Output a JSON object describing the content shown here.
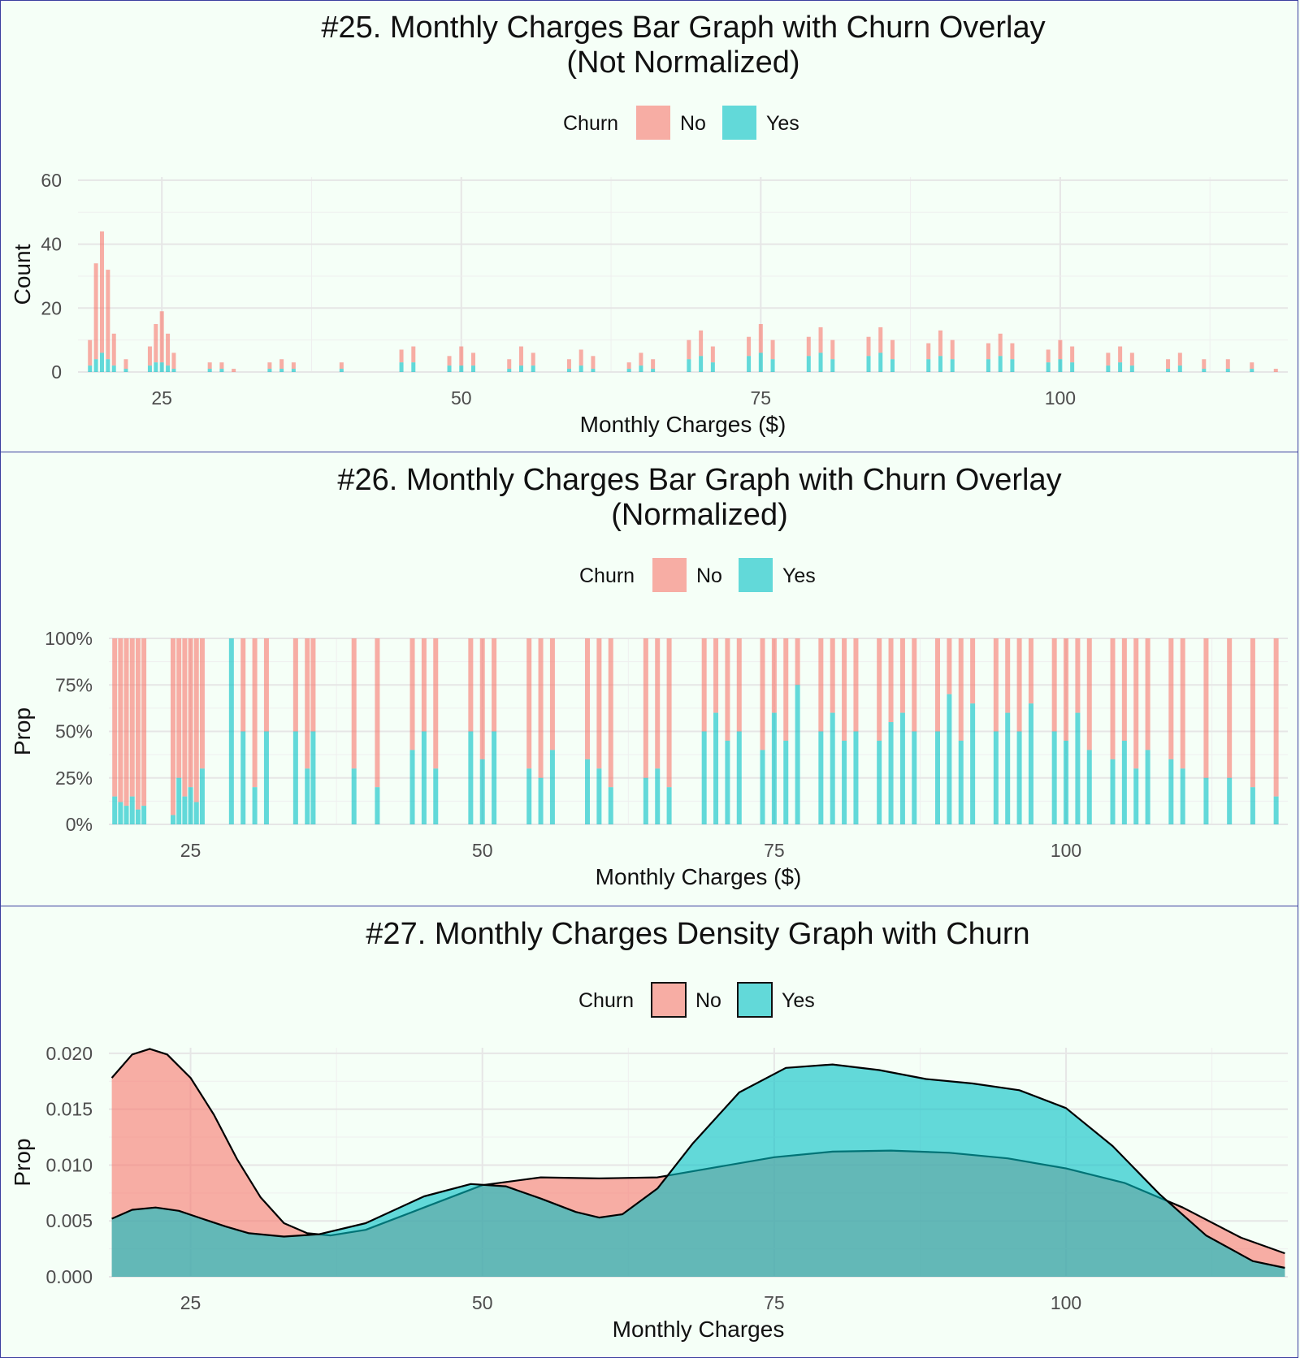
{
  "chart_data": [
    {
      "type": "bar",
      "title": "#25. Monthly Charges Bar Graph with Churn Overlay\n(Not Normalized)",
      "xlabel": "Monthly Charges ($)",
      "ylabel": "Count",
      "xlim": [
        18,
        119
      ],
      "ylim": [
        0,
        61
      ],
      "xticks": [
        25,
        50,
        75,
        100
      ],
      "yticks": [
        0,
        20,
        40,
        60
      ],
      "ytick_labels": [
        "0",
        "20",
        "40",
        "60"
      ],
      "legend": {
        "title": "Churn",
        "position": "top",
        "items": [
          {
            "label": "No",
            "color": "#f8766d"
          },
          {
            "label": "Yes",
            "color": "#00bfc4"
          }
        ]
      },
      "grid": true,
      "stacked": true,
      "series": [
        {
          "name": "No",
          "color": "#f8766d",
          "x": [
            19,
            19.5,
            20,
            20.5,
            21,
            22,
            24,
            24.5,
            25,
            25.5,
            26,
            29,
            30,
            31,
            34,
            35,
            36,
            40,
            45,
            46,
            49,
            50,
            51,
            54,
            55,
            56,
            59,
            60,
            61,
            64,
            65,
            66,
            69,
            70,
            71,
            74,
            75,
            76,
            79,
            80,
            81,
            84,
            85,
            86,
            89,
            90,
            91,
            94,
            95,
            96,
            99,
            100,
            101,
            104,
            105,
            106,
            109,
            110,
            112,
            114,
            116,
            118
          ],
          "values": [
            8,
            30,
            38,
            28,
            10,
            3,
            6,
            12,
            16,
            10,
            5,
            2,
            2,
            1,
            2,
            3,
            2,
            2,
            4,
            5,
            3,
            6,
            4,
            3,
            6,
            4,
            3,
            5,
            4,
            2,
            4,
            3,
            6,
            8,
            5,
            6,
            9,
            6,
            6,
            8,
            6,
            6,
            8,
            6,
            5,
            8,
            6,
            5,
            7,
            5,
            4,
            6,
            5,
            4,
            5,
            4,
            3,
            4,
            3,
            3,
            2,
            1
          ]
        },
        {
          "name": "Yes",
          "color": "#00bfc4",
          "x": [
            19,
            19.5,
            20,
            20.5,
            21,
            22,
            24,
            24.5,
            25,
            25.5,
            26,
            29,
            30,
            31,
            34,
            35,
            36,
            40,
            45,
            46,
            49,
            50,
            51,
            54,
            55,
            56,
            59,
            60,
            61,
            64,
            65,
            66,
            69,
            70,
            71,
            74,
            75,
            76,
            79,
            80,
            81,
            84,
            85,
            86,
            89,
            90,
            91,
            94,
            95,
            96,
            99,
            100,
            101,
            104,
            105,
            106,
            109,
            110,
            112,
            114,
            116,
            118
          ],
          "values": [
            2,
            4,
            6,
            4,
            2,
            1,
            2,
            3,
            3,
            2,
            1,
            1,
            1,
            0,
            1,
            1,
            1,
            1,
            3,
            3,
            2,
            2,
            2,
            1,
            2,
            2,
            1,
            2,
            1,
            1,
            2,
            1,
            4,
            5,
            3,
            5,
            6,
            4,
            5,
            6,
            4,
            5,
            6,
            4,
            4,
            5,
            4,
            4,
            5,
            4,
            3,
            4,
            3,
            2,
            3,
            2,
            1,
            2,
            1,
            1,
            1,
            0
          ]
        }
      ]
    },
    {
      "type": "bar",
      "title": "#26. Monthly Charges Bar Graph with Churn Overlay\n(Normalized)",
      "xlabel": "Monthly Charges ($)",
      "ylabel": "Prop",
      "xlim": [
        18,
        119
      ],
      "ylim": [
        0,
        1
      ],
      "xticks": [
        25,
        50,
        75,
        100
      ],
      "yticks": [
        0,
        0.25,
        0.5,
        0.75,
        1
      ],
      "ytick_labels": [
        "0%",
        "25%",
        "50%",
        "75%",
        "100%"
      ],
      "legend": {
        "title": "Churn",
        "position": "top",
        "items": [
          {
            "label": "No",
            "color": "#f8766d"
          },
          {
            "label": "Yes",
            "color": "#00bfc4"
          }
        ]
      },
      "grid": true,
      "stacked": true,
      "normalized": true,
      "series": [
        {
          "name": "Yes",
          "color": "#00bfc4",
          "x": [
            18.5,
            19,
            19.5,
            20,
            20.5,
            21,
            23.5,
            24,
            24.5,
            25,
            25.5,
            26,
            28.5,
            29.5,
            30.5,
            31.5,
            34,
            35,
            35.5,
            39,
            41,
            44,
            45,
            46,
            49,
            50,
            51,
            54,
            55,
            56,
            59,
            60,
            61,
            64,
            65,
            66,
            69,
            70,
            71,
            72,
            74,
            75,
            76,
            77,
            79,
            80,
            81,
            82,
            84,
            85,
            86,
            87,
            89,
            90,
            91,
            92,
            94,
            95,
            96,
            97,
            99,
            100,
            101,
            102,
            104,
            105,
            106,
            107,
            109,
            110,
            112,
            114,
            116,
            118
          ],
          "values": [
            0.15,
            0.12,
            0.1,
            0.15,
            0.08,
            0.1,
            0.05,
            0.25,
            0.15,
            0.2,
            0.12,
            0.3,
            1,
            0.5,
            0.2,
            0.5,
            0.5,
            0.3,
            0.5,
            0.3,
            0.2,
            0.4,
            0.5,
            0.3,
            0.5,
            0.35,
            0.5,
            0.3,
            0.25,
            0.4,
            0.35,
            0.3,
            0.2,
            0.25,
            0.3,
            0.2,
            0.5,
            0.6,
            0.45,
            0.5,
            0.4,
            0.6,
            0.45,
            0.75,
            0.5,
            0.6,
            0.45,
            0.5,
            0.45,
            0.55,
            0.6,
            0.5,
            0.5,
            0.7,
            0.45,
            0.65,
            0.5,
            0.6,
            0.5,
            0.65,
            0.5,
            0.45,
            0.6,
            0.4,
            0.35,
            0.45,
            0.3,
            0.4,
            0.35,
            0.3,
            0.25,
            0.25,
            0.2,
            0.15
          ]
        }
      ]
    },
    {
      "type": "area",
      "title": "#27. Monthly Charges Density Graph with Churn",
      "xlabel": "Monthly Charges",
      "ylabel": "Prop",
      "xlim": [
        18,
        119
      ],
      "ylim": [
        0,
        0.0205
      ],
      "xticks": [
        25,
        50,
        75,
        100
      ],
      "yticks": [
        0,
        0.005,
        0.01,
        0.015,
        0.02
      ],
      "ytick_labels": [
        "0.000",
        "0.005",
        "0.010",
        "0.015",
        "0.020"
      ],
      "legend": {
        "title": "Churn",
        "position": "top",
        "items": [
          {
            "label": "No",
            "color": "#f8766d"
          },
          {
            "label": "Yes",
            "color": "#00bfc4"
          }
        ]
      },
      "grid": true,
      "series": [
        {
          "name": "No",
          "color": "#f8766d",
          "x": [
            18.25,
            20,
            21.5,
            23,
            25,
            27,
            29,
            31,
            33,
            35,
            37,
            40,
            45,
            50,
            55,
            60,
            65,
            70,
            75,
            80,
            85,
            90,
            95,
            100,
            105,
            110,
            115,
            118.75
          ],
          "y": [
            0.0178,
            0.0199,
            0.0204,
            0.0199,
            0.0178,
            0.0145,
            0.0105,
            0.0071,
            0.0048,
            0.0039,
            0.0037,
            0.0042,
            0.0062,
            0.0082,
            0.0089,
            0.0088,
            0.0089,
            0.0098,
            0.0107,
            0.0112,
            0.0113,
            0.0111,
            0.0106,
            0.0097,
            0.0084,
            0.0062,
            0.0035,
            0.0021
          ]
        },
        {
          "name": "Yes",
          "color": "#00bfc4",
          "x": [
            18.25,
            20,
            22,
            24,
            26,
            28,
            30,
            33,
            36,
            40,
            45,
            49,
            52,
            55,
            58,
            60,
            62,
            65,
            68,
            72,
            76,
            80,
            84,
            88,
            92,
            96,
            100,
            104,
            108,
            112,
            116,
            118.75
          ],
          "y": [
            0.0052,
            0.006,
            0.0062,
            0.0059,
            0.0052,
            0.0045,
            0.0039,
            0.0036,
            0.0038,
            0.0048,
            0.0072,
            0.0083,
            0.0081,
            0.007,
            0.0058,
            0.0053,
            0.0056,
            0.0079,
            0.0119,
            0.0165,
            0.0187,
            0.019,
            0.0185,
            0.0177,
            0.0173,
            0.0167,
            0.0151,
            0.0117,
            0.0074,
            0.0037,
            0.0014,
            0.0008
          ]
        }
      ]
    }
  ]
}
